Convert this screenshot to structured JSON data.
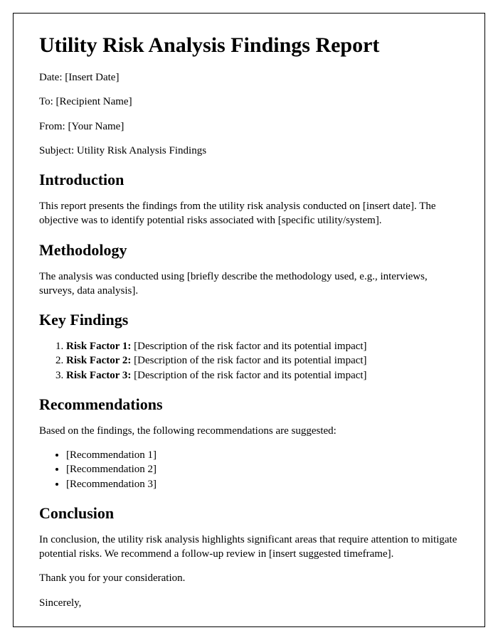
{
  "title": "Utility Risk Analysis Findings Report",
  "meta": {
    "date_label": "Date: ",
    "date_value": "[Insert Date]",
    "to_label": "To: ",
    "to_value": "[Recipient Name]",
    "from_label": "From: ",
    "from_value": "[Your Name]",
    "subject_label": "Subject: ",
    "subject_value": "Utility Risk Analysis Findings"
  },
  "sections": {
    "introduction": {
      "heading": "Introduction",
      "body": "This report presents the findings from the utility risk analysis conducted on [insert date]. The objective was to identify potential risks associated with [specific utility/system]."
    },
    "methodology": {
      "heading": "Methodology",
      "body": "The analysis was conducted using [briefly describe the methodology used, e.g., interviews, surveys, data analysis]."
    },
    "findings": {
      "heading": "Key Findings",
      "items": [
        {
          "label": "Risk Factor 1: ",
          "desc": "[Description of the risk factor and its potential impact]"
        },
        {
          "label": "Risk Factor 2: ",
          "desc": "[Description of the risk factor and its potential impact]"
        },
        {
          "label": "Risk Factor 3: ",
          "desc": "[Description of the risk factor and its potential impact]"
        }
      ]
    },
    "recommendations": {
      "heading": "Recommendations",
      "intro": "Based on the findings, the following recommendations are suggested:",
      "items": [
        "[Recommendation 1]",
        "[Recommendation 2]",
        "[Recommendation 3]"
      ]
    },
    "conclusion": {
      "heading": "Conclusion",
      "body": "In conclusion, the utility risk analysis highlights significant areas that require attention to mitigate potential risks. We recommend a follow-up review in [insert suggested timeframe].",
      "thanks": "Thank you for your consideration.",
      "signoff": "Sincerely,"
    }
  }
}
